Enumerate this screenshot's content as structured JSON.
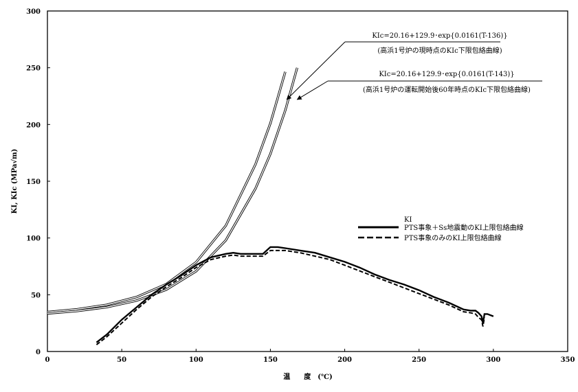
{
  "chart_data": {
    "type": "line",
    "xlabel": "温　　度　(℃)",
    "ylabel": "KI, KIc (MPa√m)",
    "xlim": [
      0,
      350
    ],
    "ylim": [
      0,
      300
    ],
    "xticks": [
      0,
      50,
      100,
      150,
      200,
      250,
      300,
      350
    ],
    "yticks": [
      0,
      50,
      100,
      150,
      200,
      250,
      300
    ],
    "grid": false,
    "legend_position": "right",
    "legend_title": "KI",
    "annotations": [
      {
        "line1": "KIc=20.16+129.9･exp{0.0161(T-136)}",
        "line2": "(高浜1号炉の現時点のKIc下限包絡曲線)",
        "arrow_to": [
          161,
          222
        ]
      },
      {
        "line1": "KIc=20.16+129.9･exp{0.0161(T-143)}",
        "line2": "(高浜1号炉の運転開始後60年時点のKIc下限包絡曲線)",
        "arrow_to": [
          168,
          222
        ]
      }
    ],
    "series": [
      {
        "style": "double-thin",
        "formula": "KIc=20.16+129.9*exp(0.0161*(T-136))",
        "x": [
          0,
          20,
          40,
          60,
          80,
          100,
          120,
          140,
          150,
          160
        ],
        "y": [
          34.8,
          37.2,
          41.2,
          48.0,
          59.4,
          78.6,
          110.8,
          165.0,
          201.0,
          246.5
        ]
      },
      {
        "style": "double-thin",
        "formula": "KIc=20.16+129.9*exp(0.0161*(T-143))",
        "x": [
          0,
          20,
          40,
          60,
          80,
          100,
          120,
          140,
          150,
          160,
          168
        ],
        "y": [
          33.5,
          35.7,
          39.1,
          44.9,
          54.5,
          70.7,
          97.9,
          143.6,
          174.0,
          212.4,
          250.0
        ]
      },
      {
        "name": "PTS事象＋Ss地震動のKI上限包絡曲線",
        "style": "solid-thick",
        "x": [
          33,
          40,
          50,
          60,
          70,
          80,
          90,
          100,
          110,
          120,
          125,
          130,
          140,
          145,
          150,
          155,
          160,
          170,
          180,
          190,
          200,
          210,
          220,
          230,
          240,
          250,
          260,
          270,
          280,
          285,
          288,
          290,
          292,
          293,
          294,
          296,
          300
        ],
        "y": [
          8,
          15,
          28,
          39,
          50,
          59,
          67,
          76,
          83,
          86,
          87,
          86,
          86,
          86,
          92,
          92,
          91,
          89,
          87,
          83,
          79,
          74,
          68,
          63,
          59,
          54,
          48,
          43,
          37,
          36,
          36,
          34,
          31,
          25,
          33,
          33,
          31
        ]
      },
      {
        "name": "PTS事象のみのKI上限包絡曲線",
        "style": "dashed-thick",
        "x": [
          33,
          40,
          50,
          60,
          70,
          80,
          90,
          100,
          110,
          120,
          125,
          130,
          140,
          145,
          150,
          155,
          160,
          170,
          180,
          190,
          200,
          210,
          220,
          230,
          240,
          250,
          260,
          270,
          280,
          285,
          288,
          290,
          292,
          293,
          294
        ],
        "y": [
          6,
          13,
          25,
          37,
          48,
          57,
          65,
          74,
          81,
          84,
          85,
          84,
          84,
          84,
          89,
          89,
          89,
          87,
          84,
          81,
          76,
          71,
          66,
          61,
          56,
          51,
          46,
          41,
          35,
          34,
          33,
          30,
          28,
          22,
          30
        ]
      }
    ]
  }
}
